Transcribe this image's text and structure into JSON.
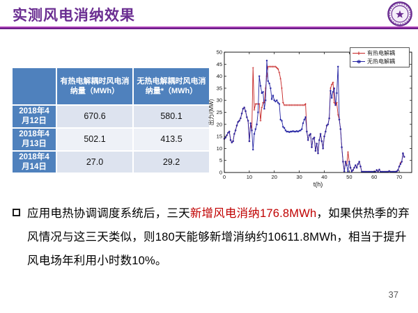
{
  "slide": {
    "title": "实测风电消纳效果",
    "title_color": "#6a2d91",
    "accent_color": "#7030a0",
    "page_number": "37"
  },
  "table": {
    "header_bg": "#4f81bd",
    "headers": [
      "",
      "有热电解耦时风电消纳量（MWh）",
      "无热电解耦时风电消纳量*（MWh）"
    ],
    "rows": [
      {
        "label": "2018年4月12日",
        "with_decoupling": "670.6",
        "without_decoupling": "580.1"
      },
      {
        "label": "2018年4月13日",
        "with_decoupling": "502.1",
        "without_decoupling": "413.5"
      },
      {
        "label": "2018年4月14日",
        "with_decoupling": "27.0",
        "without_decoupling": "29.2"
      }
    ]
  },
  "chart_data": {
    "type": "line",
    "title": "",
    "xlabel": "t(h)",
    "ylabel": "出力/(MW)",
    "xlim": [
      0,
      75
    ],
    "ylim": [
      0,
      50
    ],
    "xticks": [
      0,
      10,
      20,
      30,
      40,
      50,
      60,
      70
    ],
    "yticks": [
      0,
      5,
      10,
      15,
      20,
      25,
      30,
      35,
      40,
      45,
      50
    ],
    "grid": false,
    "legend_position": "top-right",
    "x_start": 0,
    "x_step": 0.5,
    "series": [
      {
        "name": "有热电解耦",
        "color": "#c52222",
        "marker": "plus",
        "marker_char": "+",
        "values": [
          14,
          14.5,
          15.5,
          16.5,
          17,
          13.5,
          12.5,
          13,
          16,
          17.5,
          19.5,
          21,
          21.5,
          22.5,
          24.5,
          26.5,
          27,
          25.5,
          23,
          21.5,
          13,
          20.5,
          17.5,
          43.5,
          26,
          28.5,
          28.5,
          28.5,
          28.5,
          21.5,
          27,
          29,
          29,
          35,
          40,
          44,
          44,
          44,
          44,
          44,
          44,
          44,
          43.5,
          43,
          41.5,
          39,
          35,
          29,
          28,
          28,
          28,
          28,
          28,
          28,
          28,
          28,
          28,
          28,
          28,
          28,
          28,
          28,
          28,
          28,
          28,
          28.5,
          17,
          13.5,
          15.5,
          16,
          10.5,
          14,
          14.5,
          9,
          12,
          8,
          13.5,
          16,
          13,
          10,
          15,
          17,
          19.5,
          20,
          22.5,
          35,
          36.5,
          37.5,
          29,
          28,
          29,
          24,
          22,
          18,
          10.5,
          4.5,
          0.5,
          4.5,
          3,
          8.5,
          4.5,
          2,
          0.5,
          1,
          2,
          3,
          2,
          3.5,
          4.5,
          2.5,
          0.3,
          0.3,
          0.3,
          0.3,
          0.3,
          0.3,
          0.3,
          0.3,
          0.3,
          0.3,
          0.3,
          0.3,
          1,
          0.4,
          1.2,
          0.3,
          0.3,
          0.3,
          0.3,
          0.3,
          0.3,
          0.3,
          0.6,
          0.3,
          0.3,
          0.3,
          0.3,
          0.3,
          0.5,
          1,
          2.5,
          4,
          4.5,
          8,
          6.5
        ]
      },
      {
        "name": "无热电解耦",
        "color": "#2323a3",
        "marker": "asterisk",
        "marker_char": "∗",
        "values": [
          14,
          14.5,
          15.5,
          16.5,
          17,
          13.5,
          12.5,
          13,
          16,
          17.5,
          19.5,
          21,
          21.5,
          22.5,
          24.5,
          26.5,
          27,
          25.5,
          23,
          21.5,
          13,
          20.5,
          17.5,
          9.5,
          16,
          18,
          20,
          25,
          40,
          36,
          33,
          33.5,
          26.5,
          30,
          46.5,
          38,
          37,
          35,
          30.5,
          32,
          30,
          29.5,
          30,
          29,
          28.5,
          22,
          21.5,
          19,
          18.5,
          17.5,
          17,
          17,
          16.8,
          17,
          17,
          17.2,
          17,
          17,
          17.2,
          17,
          17.3,
          17.5,
          18,
          20.5,
          22,
          23,
          17,
          13.5,
          15.5,
          16,
          10.5,
          14,
          14.5,
          9,
          12,
          8,
          13.5,
          16,
          13,
          10,
          15,
          17,
          19.5,
          20,
          22.5,
          34,
          31,
          33.5,
          35,
          28,
          33,
          44,
          22,
          18,
          10.5,
          4.5,
          0.5,
          4.5,
          3,
          0.5,
          4.5,
          2,
          0.5,
          1,
          2,
          3,
          2,
          3.5,
          4.5,
          2.5,
          0.3,
          0.3,
          0.3,
          0.3,
          0.3,
          0.3,
          0.3,
          0.3,
          0.3,
          0.3,
          0.3,
          0.3,
          1,
          0.4,
          1.2,
          0.3,
          0.3,
          0.3,
          0.3,
          0.3,
          0.3,
          0.3,
          0.6,
          0.3,
          0.3,
          0.3,
          0.3,
          0.3,
          0.5,
          1,
          2.5,
          3.5,
          4.5,
          8,
          6.5
        ]
      }
    ]
  },
  "body": {
    "highlight_color": "#c00000",
    "bullet_parts": [
      {
        "text": "应用电热协调调度系统后，三天"
      },
      {
        "text": "新增风电消纳176.8MWh"
      },
      {
        "text": "，如果供热季的弃风情况与这三天类似，则180天能够新增消纳约10611.8MWh，相当于提升风电场年利用小时数10%。"
      }
    ]
  }
}
